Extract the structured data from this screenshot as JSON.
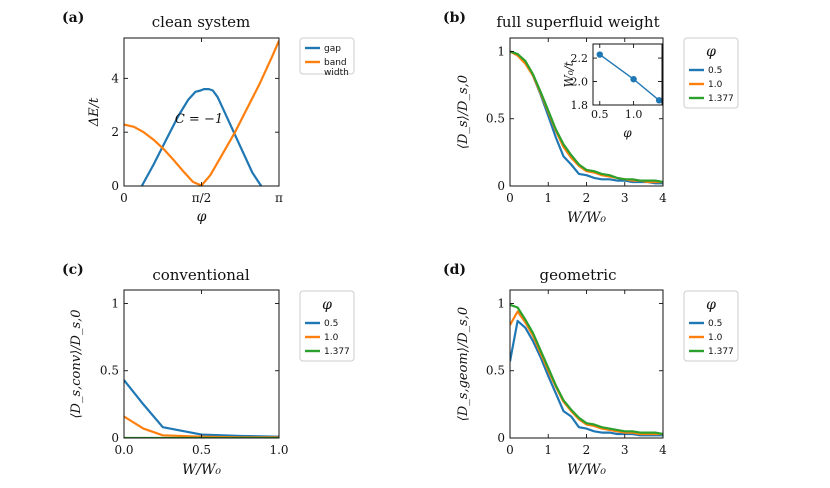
{
  "colors": {
    "blue": "#1f77b4",
    "orange": "#ff7f0e",
    "green": "#2ca02c"
  },
  "chart_data": [
    {
      "id": "a",
      "panel_label": "(a)",
      "type": "line",
      "title": "clean system",
      "xlabel": "φ",
      "ylabel": "ΔE/t",
      "xlim": [
        0,
        3.1416
      ],
      "ylim": [
        0,
        5.5
      ],
      "xticks": [
        {
          "v": 0,
          "label": "0"
        },
        {
          "v": 1.5708,
          "label": "π/2"
        },
        {
          "v": 3.1416,
          "label": "π"
        }
      ],
      "yticks": [
        {
          "v": 0,
          "label": "0"
        },
        {
          "v": 2,
          "label": "2"
        },
        {
          "v": 4,
          "label": "4"
        }
      ],
      "annotations": [
        {
          "text": "C = −1",
          "x": 1.52,
          "y": 2.35
        }
      ],
      "legend": {
        "position": "outside-right",
        "title": "",
        "entries": [
          {
            "label": "gap",
            "color": "#1f77b4"
          },
          {
            "label": "band width",
            "color": "#ff7f0e"
          }
        ]
      },
      "series": [
        {
          "name": "gap",
          "color": "#1f77b4",
          "x": [
            0.36,
            0.6,
            0.85,
            1.1,
            1.3,
            1.45,
            1.55,
            1.62,
            1.72,
            1.8,
            1.9,
            2.1,
            2.35,
            2.6,
            2.78
          ],
          "y": [
            0,
            0.8,
            1.7,
            2.6,
            3.2,
            3.5,
            3.55,
            3.6,
            3.6,
            3.55,
            3.3,
            2.5,
            1.5,
            0.5,
            0
          ]
        },
        {
          "name": "band width",
          "color": "#ff7f0e",
          "x": [
            0,
            0.2,
            0.4,
            0.6,
            0.8,
            1.0,
            1.2,
            1.4,
            1.5708,
            1.75,
            2.0,
            2.25,
            2.5,
            2.75,
            3.0,
            3.1416
          ],
          "y": [
            2.28,
            2.2,
            2.0,
            1.72,
            1.38,
            0.98,
            0.55,
            0.15,
            0.02,
            0.4,
            1.2,
            2.0,
            2.9,
            3.8,
            4.8,
            5.4
          ]
        }
      ]
    },
    {
      "id": "b",
      "panel_label": "(b)",
      "type": "line",
      "title": "full superfluid weight",
      "xlabel": "W/W₀",
      "ylabel": "⟨D_s⟩/D_s,0",
      "xlim": [
        0,
        4
      ],
      "ylim": [
        0,
        1.1
      ],
      "xticks": [
        {
          "v": 0,
          "label": "0"
        },
        {
          "v": 1,
          "label": "1"
        },
        {
          "v": 2,
          "label": "2"
        },
        {
          "v": 3,
          "label": "3"
        },
        {
          "v": 4,
          "label": "4"
        }
      ],
      "yticks": [
        {
          "v": 0,
          "label": "0"
        },
        {
          "v": 0.5,
          "label": "0.5"
        },
        {
          "v": 1,
          "label": "1"
        }
      ],
      "legend": {
        "position": "outside-right",
        "title": "φ",
        "entries": [
          {
            "label": "0.5",
            "color": "#1f77b4"
          },
          {
            "label": "1.0",
            "color": "#ff7f0e"
          },
          {
            "label": "1.377",
            "color": "#2ca02c"
          }
        ]
      },
      "series": [
        {
          "name": "0.5",
          "color": "#1f77b4",
          "x": [
            0,
            0.2,
            0.4,
            0.6,
            0.8,
            1.0,
            1.2,
            1.4,
            1.6,
            1.8,
            2.0,
            2.2,
            2.4,
            2.6,
            2.8,
            3.0,
            3.2,
            3.4,
            3.6,
            3.8,
            4.0
          ],
          "y": [
            1.0,
            0.98,
            0.92,
            0.82,
            0.68,
            0.52,
            0.36,
            0.22,
            0.16,
            0.09,
            0.08,
            0.06,
            0.05,
            0.05,
            0.04,
            0.04,
            0.03,
            0.03,
            0.03,
            0.02,
            0.02
          ]
        },
        {
          "name": "1.0",
          "color": "#ff7f0e",
          "x": [
            0,
            0.2,
            0.4,
            0.6,
            0.8,
            1.0,
            1.2,
            1.4,
            1.6,
            1.8,
            2.0,
            2.2,
            2.4,
            2.6,
            2.8,
            3.0,
            3.2,
            3.4,
            3.6,
            3.8,
            4.0
          ],
          "y": [
            1.0,
            0.97,
            0.91,
            0.82,
            0.69,
            0.55,
            0.41,
            0.29,
            0.21,
            0.15,
            0.11,
            0.1,
            0.08,
            0.07,
            0.06,
            0.05,
            0.04,
            0.04,
            0.03,
            0.03,
            0.03
          ]
        },
        {
          "name": "1.377",
          "color": "#2ca02c",
          "x": [
            0,
            0.2,
            0.4,
            0.6,
            0.8,
            1.0,
            1.2,
            1.4,
            1.6,
            1.8,
            2.0,
            2.2,
            2.4,
            2.6,
            2.8,
            3.0,
            3.2,
            3.4,
            3.6,
            3.8,
            4.0
          ],
          "y": [
            1.0,
            0.98,
            0.93,
            0.83,
            0.7,
            0.56,
            0.42,
            0.31,
            0.23,
            0.16,
            0.12,
            0.11,
            0.09,
            0.08,
            0.06,
            0.05,
            0.05,
            0.04,
            0.04,
            0.04,
            0.03
          ]
        }
      ]
    },
    {
      "id": "b-inset",
      "type": "scatter",
      "title": "",
      "xlabel": "φ",
      "ylabel": "W₀/t",
      "xlim": [
        0.4,
        1.42
      ],
      "ylim": [
        1.8,
        2.32
      ],
      "xticks": [
        {
          "v": 0.5,
          "label": "0.5"
        },
        {
          "v": 1.0,
          "label": "1.0"
        }
      ],
      "yticks": [
        {
          "v": 1.8,
          "label": "1.8"
        },
        {
          "v": 2.0,
          "label": "2.0"
        },
        {
          "v": 2.2,
          "label": "2.2"
        }
      ],
      "series": [
        {
          "name": "W0",
          "color": "#1f77b4",
          "x": [
            0.5,
            1.0,
            1.377
          ],
          "y": [
            2.23,
            2.02,
            1.84
          ]
        }
      ]
    },
    {
      "id": "c",
      "panel_label": "(c)",
      "type": "line",
      "title": "conventional",
      "xlabel": "W/W₀",
      "ylabel": "⟨D_s,conv⟩/D_s,0",
      "xlim": [
        0,
        1.0
      ],
      "ylim": [
        0,
        1.1
      ],
      "xticks": [
        {
          "v": 0,
          "label": "0.0"
        },
        {
          "v": 0.5,
          "label": "0.5"
        },
        {
          "v": 1.0,
          "label": "1.0"
        }
      ],
      "yticks": [
        {
          "v": 0,
          "label": "0"
        },
        {
          "v": 0.5,
          "label": "0.5"
        },
        {
          "v": 1,
          "label": "1"
        }
      ],
      "legend": {
        "position": "outside-right",
        "title": "φ",
        "entries": [
          {
            "label": "0.5",
            "color": "#1f77b4"
          },
          {
            "label": "1.0",
            "color": "#ff7f0e"
          },
          {
            "label": "1.377",
            "color": "#2ca02c"
          }
        ]
      },
      "series": [
        {
          "name": "0.5",
          "color": "#1f77b4",
          "x": [
            0,
            0.125,
            0.25,
            0.5,
            0.75,
            1.0
          ],
          "y": [
            0.43,
            0.25,
            0.08,
            0.025,
            0.015,
            0.01
          ]
        },
        {
          "name": "1.0",
          "color": "#ff7f0e",
          "x": [
            0,
            0.125,
            0.25,
            0.5,
            0.75,
            1.0
          ],
          "y": [
            0.16,
            0.07,
            0.02,
            0.01,
            0.005,
            0.005
          ]
        },
        {
          "name": "1.377",
          "color": "#2ca02c",
          "x": [
            0,
            0.125,
            0.25,
            0.5,
            0.75,
            1.0
          ],
          "y": [
            0.0,
            0.0,
            0.0,
            0.0,
            0.0,
            0.0
          ]
        }
      ]
    },
    {
      "id": "d",
      "panel_label": "(d)",
      "type": "line",
      "title": "geometric",
      "xlabel": "W/W₀",
      "ylabel": "⟨D_s,geom⟩/D_s,0",
      "xlim": [
        0,
        4
      ],
      "ylim": [
        0,
        1.1
      ],
      "xticks": [
        {
          "v": 0,
          "label": "0"
        },
        {
          "v": 1,
          "label": "1"
        },
        {
          "v": 2,
          "label": "2"
        },
        {
          "v": 3,
          "label": "3"
        },
        {
          "v": 4,
          "label": "4"
        }
      ],
      "yticks": [
        {
          "v": 0,
          "label": "0"
        },
        {
          "v": 0.5,
          "label": "0.5"
        },
        {
          "v": 1,
          "label": "1"
        }
      ],
      "legend": {
        "position": "outside-right",
        "title": "φ",
        "entries": [
          {
            "label": "0.5",
            "color": "#1f77b4"
          },
          {
            "label": "1.0",
            "color": "#ff7f0e"
          },
          {
            "label": "1.377",
            "color": "#2ca02c"
          }
        ]
      },
      "series": [
        {
          "name": "0.5",
          "color": "#1f77b4",
          "x": [
            0,
            0.2,
            0.4,
            0.6,
            0.8,
            1.0,
            1.2,
            1.4,
            1.6,
            1.8,
            2.0,
            2.2,
            2.4,
            2.6,
            2.8,
            3.0,
            3.2,
            3.4,
            3.6,
            3.8,
            4.0
          ],
          "y": [
            0.57,
            0.87,
            0.82,
            0.72,
            0.6,
            0.46,
            0.33,
            0.2,
            0.16,
            0.08,
            0.07,
            0.05,
            0.04,
            0.04,
            0.03,
            0.03,
            0.03,
            0.02,
            0.02,
            0.02,
            0.02
          ]
        },
        {
          "name": "1.0",
          "color": "#ff7f0e",
          "x": [
            0,
            0.2,
            0.4,
            0.6,
            0.8,
            1.0,
            1.2,
            1.4,
            1.6,
            1.8,
            2.0,
            2.2,
            2.4,
            2.6,
            2.8,
            3.0,
            3.2,
            3.4,
            3.6,
            3.8,
            4.0
          ],
          "y": [
            0.84,
            0.94,
            0.86,
            0.76,
            0.63,
            0.5,
            0.38,
            0.27,
            0.2,
            0.14,
            0.1,
            0.09,
            0.07,
            0.06,
            0.05,
            0.04,
            0.04,
            0.03,
            0.03,
            0.03,
            0.03
          ]
        },
        {
          "name": "1.377",
          "color": "#2ca02c",
          "x": [
            0,
            0.2,
            0.4,
            0.6,
            0.8,
            1.0,
            1.2,
            1.4,
            1.6,
            1.8,
            2.0,
            2.2,
            2.4,
            2.6,
            2.8,
            3.0,
            3.2,
            3.4,
            3.6,
            3.8,
            4.0
          ],
          "y": [
            0.99,
            0.97,
            0.88,
            0.78,
            0.65,
            0.52,
            0.39,
            0.28,
            0.21,
            0.15,
            0.11,
            0.1,
            0.08,
            0.07,
            0.06,
            0.05,
            0.05,
            0.04,
            0.04,
            0.04,
            0.03
          ]
        }
      ]
    }
  ]
}
